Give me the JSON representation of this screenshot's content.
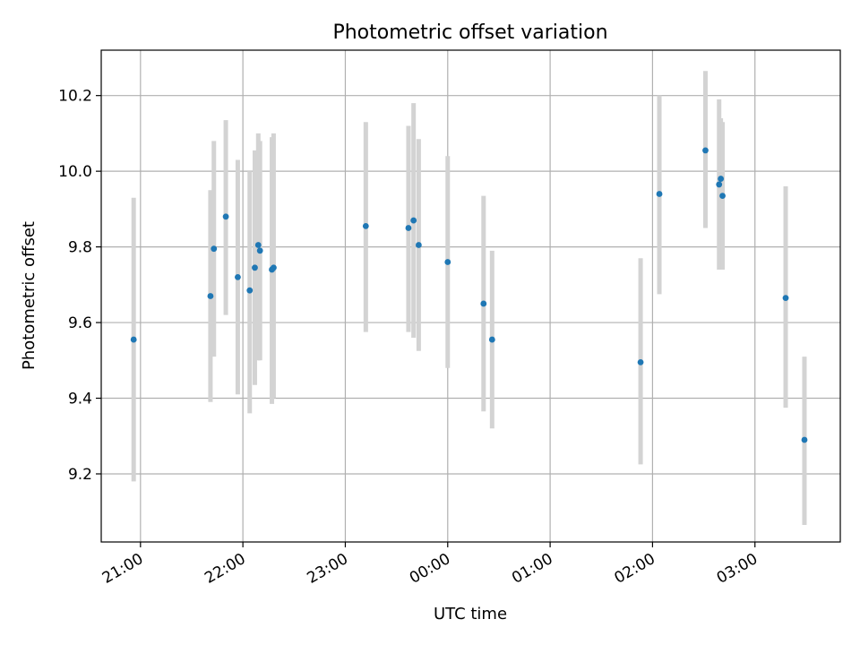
{
  "chart_data": {
    "type": "scatter",
    "title": "Photometric offset variation",
    "xlabel": "UTC time",
    "ylabel": "Photometric offset",
    "x_axis": {
      "scale": "time",
      "range": [
        "20:37",
        "03:50"
      ],
      "ticks": [
        "21:00",
        "22:00",
        "23:00",
        "00:00",
        "01:00",
        "02:00",
        "03:00"
      ],
      "tick_rotation": "30deg"
    },
    "y_axis": {
      "range": [
        9.02,
        10.32
      ],
      "ticks": [
        "9.2",
        "9.4",
        "9.6",
        "9.8",
        "10.0",
        "10.2"
      ]
    },
    "grid": true,
    "marker_color": "#1f77b4",
    "errorbar_color": "#d3d3d3",
    "series": [
      {
        "points": [
          {
            "t": "20:56",
            "y": 9.555,
            "ylo": 9.18,
            "yhi": 9.93
          },
          {
            "t": "21:41",
            "y": 9.67,
            "ylo": 9.39,
            "yhi": 9.95
          },
          {
            "t": "21:43",
            "y": 9.795,
            "ylo": 9.51,
            "yhi": 10.08
          },
          {
            "t": "21:50",
            "y": 9.88,
            "ylo": 9.62,
            "yhi": 10.135
          },
          {
            "t": "21:57",
            "y": 9.72,
            "ylo": 9.41,
            "yhi": 10.03
          },
          {
            "t": "22:04",
            "y": 9.685,
            "ylo": 9.36,
            "yhi": 10.0
          },
          {
            "t": "22:07",
            "y": 9.745,
            "ylo": 9.435,
            "yhi": 10.055
          },
          {
            "t": "22:09",
            "y": 9.805,
            "ylo": 9.5,
            "yhi": 10.1
          },
          {
            "t": "22:10",
            "y": 9.79,
            "ylo": 9.5,
            "yhi": 10.08
          },
          {
            "t": "22:17",
            "y": 9.74,
            "ylo": 9.385,
            "yhi": 10.09
          },
          {
            "t": "22:18",
            "y": 9.745,
            "ylo": 9.4,
            "yhi": 10.1
          },
          {
            "t": "23:12",
            "y": 9.855,
            "ylo": 9.575,
            "yhi": 10.13
          },
          {
            "t": "23:37",
            "y": 9.85,
            "ylo": 9.575,
            "yhi": 10.12
          },
          {
            "t": "23:40",
            "y": 9.87,
            "ylo": 9.56,
            "yhi": 10.18
          },
          {
            "t": "23:43",
            "y": 9.805,
            "ylo": 9.525,
            "yhi": 10.085
          },
          {
            "t": "00:00",
            "y": 9.76,
            "ylo": 9.48,
            "yhi": 10.04
          },
          {
            "t": "00:21",
            "y": 9.65,
            "ylo": 9.365,
            "yhi": 9.935
          },
          {
            "t": "00:26",
            "y": 9.555,
            "ylo": 9.32,
            "yhi": 9.79
          },
          {
            "t": "01:53",
            "y": 9.495,
            "ylo": 9.225,
            "yhi": 9.77
          },
          {
            "t": "02:04",
            "y": 9.94,
            "ylo": 9.675,
            "yhi": 10.2
          },
          {
            "t": "02:31",
            "y": 10.055,
            "ylo": 9.85,
            "yhi": 10.265
          },
          {
            "t": "02:39",
            "y": 9.965,
            "ylo": 9.74,
            "yhi": 10.19
          },
          {
            "t": "02:40",
            "y": 9.98,
            "ylo": 9.74,
            "yhi": 10.14
          },
          {
            "t": "02:41",
            "y": 9.935,
            "ylo": 9.74,
            "yhi": 10.13
          },
          {
            "t": "03:18",
            "y": 9.665,
            "ylo": 9.375,
            "yhi": 9.96
          },
          {
            "t": "03:29",
            "y": 9.29,
            "ylo": 9.065,
            "yhi": 9.51
          }
        ]
      }
    ]
  }
}
